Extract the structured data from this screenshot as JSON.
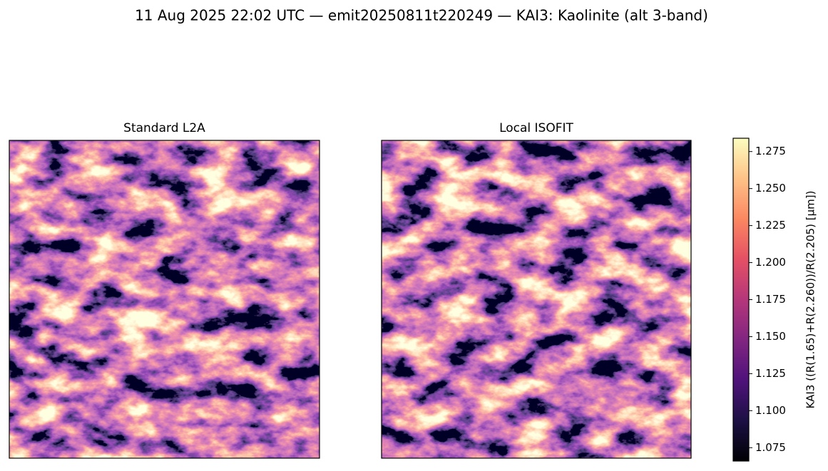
{
  "title": "11 Aug 2025 22:02 UTC — emit20250811t220249 — KAI3: Kaolinite (alt 3-band)",
  "chart_data": [
    {
      "type": "image",
      "title": "Standard L2A"
    },
    {
      "type": "image",
      "title": "Local ISOFIT"
    }
  ],
  "colorbar": {
    "label": "KAI3  ((R(1.65)+R(2.260))/R(2.205)  [µm])",
    "lim": [
      1.066,
      1.284
    ],
    "ticks": [
      1.075,
      {
        "value": 1.1,
        "label": "1.100"
      },
      1.125,
      {
        "value": 1.15,
        "label": "1.150"
      },
      1.175,
      {
        "value": 1.2,
        "label": "1.200"
      },
      1.225,
      {
        "value": 1.25,
        "label": "1.250"
      },
      1.275
    ]
  }
}
